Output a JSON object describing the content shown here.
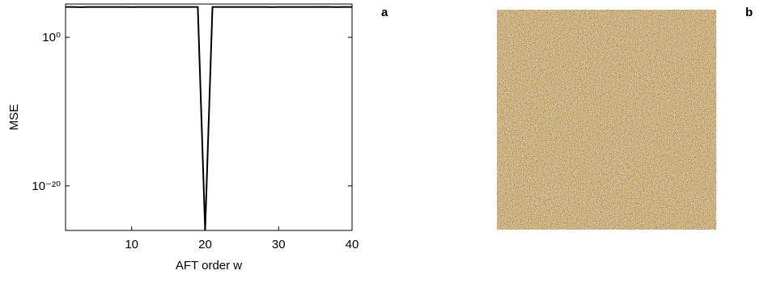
{
  "chart_data": {
    "type": "line",
    "panel_label": "a",
    "x_label": "AFT order w",
    "y_label": "MSE",
    "x": [
      1,
      2,
      3,
      4,
      5,
      6,
      7,
      8,
      9,
      10,
      11,
      12,
      13,
      14,
      15,
      16,
      17,
      18,
      19,
      20,
      21,
      22,
      23,
      24,
      25,
      26,
      27,
      28,
      29,
      30,
      31,
      32,
      33,
      34,
      35,
      36,
      37,
      38,
      39,
      40
    ],
    "values": [
      12000,
      12000,
      11500,
      12000,
      12000,
      12000,
      12000,
      12000,
      12000,
      11800,
      12000,
      12000,
      12000,
      12000,
      12000,
      12000,
      12000,
      12000,
      12000,
      1e-26,
      12000,
      12000,
      12000,
      12000,
      12000,
      12000,
      12000,
      12000,
      11800,
      12000,
      12000,
      12000,
      12000,
      12000,
      12000,
      12500,
      12000,
      11800,
      12000,
      12000
    ],
    "color": "#000000",
    "xlim": [
      1,
      40
    ],
    "xticks": [
      10,
      20,
      30,
      40
    ],
    "ylim": [
      1e-26,
      30000
    ],
    "yscale": "log",
    "yticks": [
      {
        "value": 1,
        "label": "10⁰"
      },
      {
        "value": 1e-20,
        "label": "10⁻²⁰"
      }
    ]
  },
  "image_panel": {
    "label": "b"
  }
}
